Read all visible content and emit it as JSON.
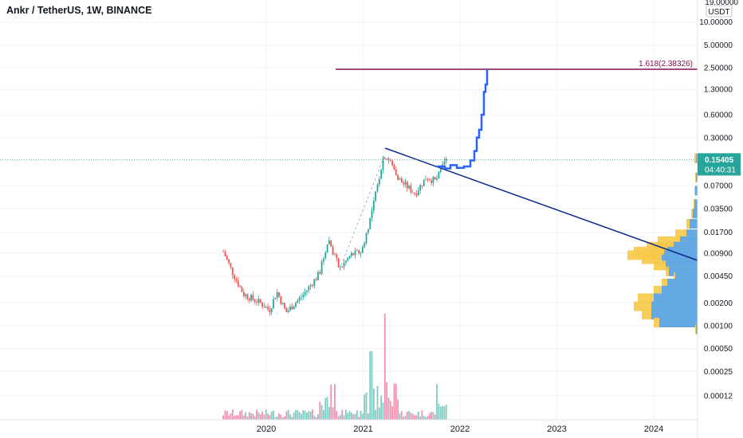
{
  "header": {
    "title": "Ankr / TetherUS, 1W, BINANCE"
  },
  "price_axis": {
    "currency": "USDT",
    "top_partial_label": "19.00000",
    "current_price": "0.15405",
    "countdown": "04:40:31"
  },
  "fib": {
    "label": "1.618(2.38326)",
    "value": 2.38326,
    "color": "#880e4f"
  },
  "colors": {
    "up": "#26a69a",
    "down": "#ef5350",
    "up_volume": "#80cbc4",
    "down_volume": "#f48fb1",
    "projection": "#2962ff",
    "trendline": "#0d2a8a",
    "profile_blue": "#5ba6ec",
    "profile_yellow": "#f7c948",
    "price_badge": "#26a69a",
    "grid": "#f0f3fa",
    "axis_text": "#131722"
  },
  "chart_data": {
    "type": "candlestick",
    "title": "Ankr / TetherUS, 1W, BINANCE",
    "y_scale": "log",
    "y_ticks": [
      {
        "value": 10,
        "label": "10.00000"
      },
      {
        "value": 5,
        "label": "5.00000"
      },
      {
        "value": 2.5,
        "label": "2.50000"
      },
      {
        "value": 1.3,
        "label": "1.30000"
      },
      {
        "value": 0.6,
        "label": "0.60000"
      },
      {
        "value": 0.3,
        "label": "0.30000"
      },
      {
        "value": 0.07,
        "label": "0.07000"
      },
      {
        "value": 0.035,
        "label": "0.03500"
      },
      {
        "value": 0.017,
        "label": "0.01700"
      },
      {
        "value": 0.009,
        "label": "0.00900"
      },
      {
        "value": 0.0045,
        "label": "0.00450"
      },
      {
        "value": 0.002,
        "label": "0.00200"
      },
      {
        "value": 0.001,
        "label": "0.00100"
      },
      {
        "value": 0.0005,
        "label": "0.00050"
      },
      {
        "value": 0.00025,
        "label": "0.00025"
      },
      {
        "value": 0.00012,
        "label": "0.00012"
      }
    ],
    "x_ticks": [
      "2020",
      "2021",
      "2022",
      "2023",
      "2024"
    ],
    "price_path": [
      {
        "date": "2019-07-22",
        "close": 0.0095
      },
      {
        "date": "2019-08-26",
        "close": 0.005
      },
      {
        "date": "2019-10-07",
        "close": 0.0026
      },
      {
        "date": "2019-12-09",
        "close": 0.002
      },
      {
        "date": "2020-01-13",
        "close": 0.0016
      },
      {
        "date": "2020-02-10",
        "close": 0.0028
      },
      {
        "date": "2020-03-16",
        "close": 0.0015
      },
      {
        "date": "2020-05-18",
        "close": 0.0025
      },
      {
        "date": "2020-07-20",
        "close": 0.0048
      },
      {
        "date": "2020-08-24",
        "close": 0.014
      },
      {
        "date": "2020-10-05",
        "close": 0.0055
      },
      {
        "date": "2020-11-16",
        "close": 0.0085
      },
      {
        "date": "2020-12-28",
        "close": 0.0095
      },
      {
        "date": "2021-02-08",
        "close": 0.035
      },
      {
        "date": "2021-03-22",
        "close": 0.18
      },
      {
        "date": "2021-04-12",
        "close": 0.15
      },
      {
        "date": "2021-05-24",
        "close": 0.08
      },
      {
        "date": "2021-07-19",
        "close": 0.055
      },
      {
        "date": "2021-08-30",
        "close": 0.09
      },
      {
        "date": "2021-10-04",
        "close": 0.08
      },
      {
        "date": "2021-11-15",
        "close": 0.154
      }
    ],
    "fib_level": {
      "label": "1.618(2.38326)",
      "value": 2.38326
    },
    "current_price": 0.15405
  }
}
